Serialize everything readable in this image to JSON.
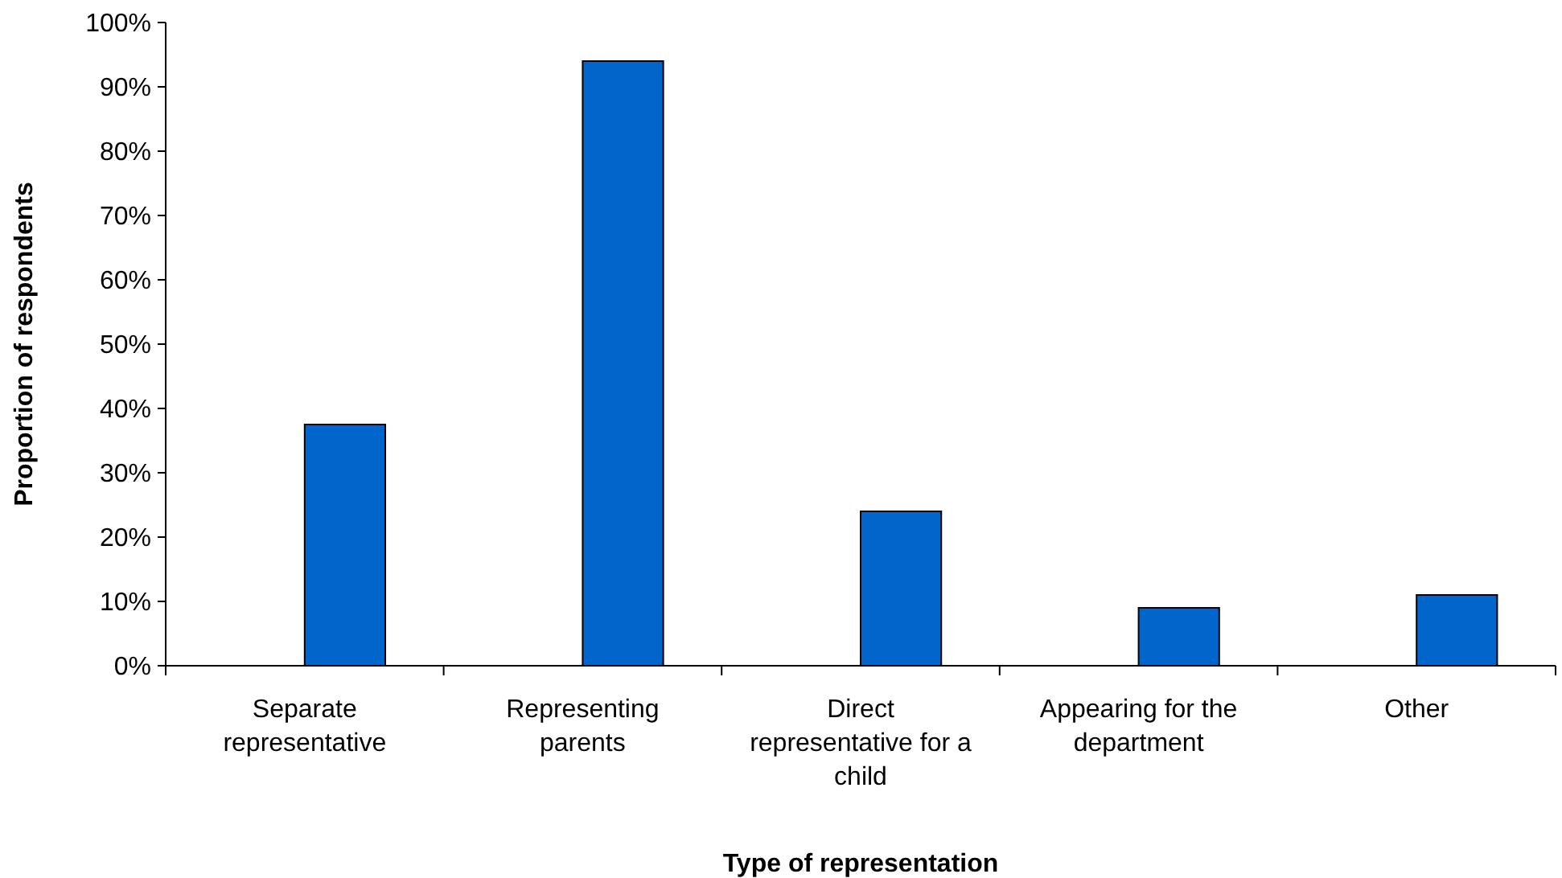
{
  "chart_data": {
    "type": "bar",
    "xlabel": "Type of representation",
    "ylabel": "Proportion of respondents",
    "categories": [
      "Separate representative",
      "Representing parents",
      "Direct representative for a child",
      "Appearing for the department",
      "Other"
    ],
    "values": [
      37.5,
      94,
      24,
      9,
      11
    ],
    "color": "#0066cc",
    "ylim": [
      0,
      100
    ],
    "yticks": [
      {
        "value": 0,
        "label": "0%"
      },
      {
        "value": 10,
        "label": "10%"
      },
      {
        "value": 20,
        "label": "20%"
      },
      {
        "value": 30,
        "label": "30%"
      },
      {
        "value": 40,
        "label": "40%"
      },
      {
        "value": 50,
        "label": "50%"
      },
      {
        "value": 60,
        "label": "60%"
      },
      {
        "value": 70,
        "label": "70%"
      },
      {
        "value": 80,
        "label": "80%"
      },
      {
        "value": 90,
        "label": "90%"
      },
      {
        "value": 100,
        "label": "100%"
      }
    ],
    "grid": false
  }
}
